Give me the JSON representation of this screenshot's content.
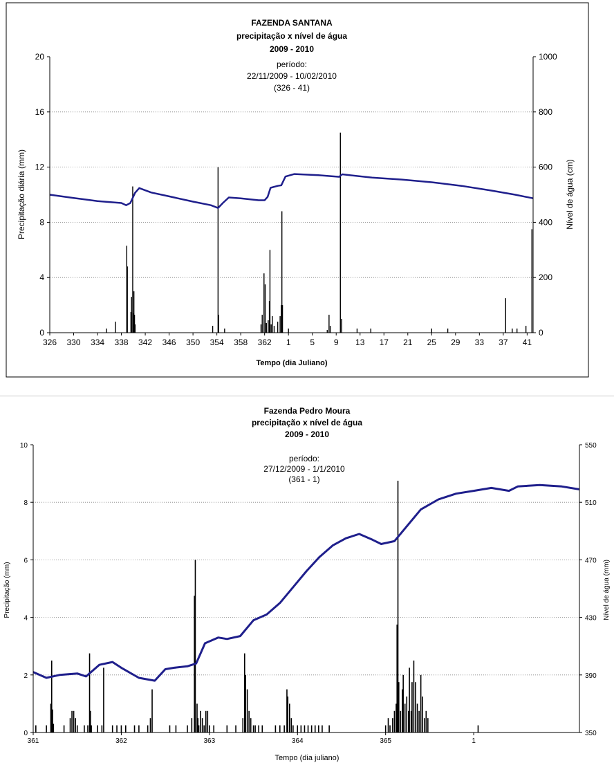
{
  "chart_data": [
    {
      "type": "bar+line",
      "title": [
        "FAZENDA SANTANA",
        "precipitação x nível de água",
        "2009 - 2010"
      ],
      "annotation": [
        "período:",
        "22/11/2009 - 10/02/2010",
        "(326 - 41)"
      ],
      "xlabel": "Tempo (dia Juliano)",
      "ylabel": "Precipitação diária (mm)",
      "y2label": "Nível de água (cm)",
      "ylim": [
        0,
        20
      ],
      "y2lim": [
        0,
        1000
      ],
      "yticks": [
        0,
        4,
        8,
        12,
        16,
        20
      ],
      "y2ticks": [
        0,
        200,
        400,
        600,
        800,
        1000
      ],
      "xticks": [
        "326",
        "330",
        "334",
        "338",
        "342",
        "346",
        "350",
        "354",
        "358",
        "362",
        "1",
        "5",
        "9",
        "13",
        "17",
        "21",
        "25",
        "29",
        "33",
        "37",
        "41"
      ],
      "xrange": [
        326,
        407
      ],
      "grid": "horizontal-dotted",
      "colors": {
        "line": "#1f1f8c",
        "bars": "#000000",
        "grid": "#808080"
      },
      "precipitation": [
        {
          "x": 335.5,
          "y": 0.3
        },
        {
          "x": 337,
          "y": 0.8
        },
        {
          "x": 338.9,
          "y": 6.3
        },
        {
          "x": 339,
          "y": 4.8
        },
        {
          "x": 339.6,
          "y": 1.5
        },
        {
          "x": 339.7,
          "y": 2.6
        },
        {
          "x": 339.9,
          "y": 10.6
        },
        {
          "x": 340,
          "y": 1.4
        },
        {
          "x": 340.1,
          "y": 3.0
        },
        {
          "x": 340.2,
          "y": 1.3
        },
        {
          "x": 340.3,
          "y": 0.6
        },
        {
          "x": 353.3,
          "y": 0.5
        },
        {
          "x": 354.2,
          "y": 12.0
        },
        {
          "x": 354.3,
          "y": 1.3
        },
        {
          "x": 355.3,
          "y": 0.3
        },
        {
          "x": 361.4,
          "y": 0.6
        },
        {
          "x": 361.6,
          "y": 1.3
        },
        {
          "x": 361.9,
          "y": 4.3
        },
        {
          "x": 362.1,
          "y": 3.5
        },
        {
          "x": 362.3,
          "y": 0.7
        },
        {
          "x": 362.6,
          "y": 0.9
        },
        {
          "x": 362.8,
          "y": 2.3
        },
        {
          "x": 362.9,
          "y": 6.0
        },
        {
          "x": 363.1,
          "y": 0.6
        },
        {
          "x": 363.3,
          "y": 1.2
        },
        {
          "x": 363.6,
          "y": 0.5
        },
        {
          "x": 364.2,
          "y": 0.8
        },
        {
          "x": 364.6,
          "y": 1.2
        },
        {
          "x": 364.8,
          "y": 2.0
        },
        {
          "x": 364.9,
          "y": 8.8
        },
        {
          "x": 365,
          "y": 2.0
        },
        {
          "x": 366,
          "y": 0.3
        },
        {
          "x": 372.5,
          "y": 0.2
        },
        {
          "x": 372.8,
          "y": 1.3
        },
        {
          "x": 373,
          "y": 0.5
        },
        {
          "x": 374.7,
          "y": 14.5
        },
        {
          "x": 374.9,
          "y": 1.0
        },
        {
          "x": 377.5,
          "y": 0.3
        },
        {
          "x": 379.8,
          "y": 0.3
        },
        {
          "x": 390,
          "y": 0.3
        },
        {
          "x": 392.7,
          "y": 0.3
        },
        {
          "x": 402.4,
          "y": 2.5
        },
        {
          "x": 403.5,
          "y": 0.3
        },
        {
          "x": 404.3,
          "y": 0.3
        },
        {
          "x": 405.8,
          "y": 0.5
        },
        {
          "x": 406.8,
          "y": 7.5
        }
      ],
      "water_level": [
        {
          "x": 326,
          "y": 500
        },
        {
          "x": 330,
          "y": 488
        },
        {
          "x": 334,
          "y": 477
        },
        {
          "x": 338,
          "y": 470
        },
        {
          "x": 338.8,
          "y": 462
        },
        {
          "x": 339.5,
          "y": 470
        },
        {
          "x": 340.3,
          "y": 507
        },
        {
          "x": 341,
          "y": 524
        },
        {
          "x": 343,
          "y": 508
        },
        {
          "x": 346,
          "y": 494
        },
        {
          "x": 350,
          "y": 475
        },
        {
          "x": 353,
          "y": 462
        },
        {
          "x": 354.2,
          "y": 452
        },
        {
          "x": 355,
          "y": 470
        },
        {
          "x": 356,
          "y": 490
        },
        {
          "x": 358,
          "y": 487
        },
        {
          "x": 361,
          "y": 480
        },
        {
          "x": 362,
          "y": 480
        },
        {
          "x": 362.5,
          "y": 492
        },
        {
          "x": 363,
          "y": 525
        },
        {
          "x": 364.2,
          "y": 532
        },
        {
          "x": 364.8,
          "y": 534
        },
        {
          "x": 365.5,
          "y": 566
        },
        {
          "x": 367,
          "y": 575
        },
        {
          "x": 371,
          "y": 571
        },
        {
          "x": 374.5,
          "y": 565
        },
        {
          "x": 375,
          "y": 574
        },
        {
          "x": 380,
          "y": 562
        },
        {
          "x": 385,
          "y": 555
        },
        {
          "x": 390,
          "y": 545
        },
        {
          "x": 395,
          "y": 532
        },
        {
          "x": 400,
          "y": 515
        },
        {
          "x": 404,
          "y": 500
        },
        {
          "x": 407,
          "y": 487
        }
      ]
    },
    {
      "type": "bar+line",
      "title": [
        "Fazenda Pedro Moura",
        "precipitação x nível de água",
        "2009 - 2010"
      ],
      "annotation": [
        "período:",
        "27/12/2009 - 1/1/2010",
        "(361 - 1)"
      ],
      "xlabel": "Tempo (dia juliano)",
      "ylabel": "Precipitação (mm)",
      "y2label": "Nível de água (mm)",
      "ylim": [
        0,
        10
      ],
      "y2lim": [
        350,
        550
      ],
      "yticks": [
        0,
        2,
        4,
        6,
        8,
        10
      ],
      "y2ticks": [
        350,
        390,
        430,
        470,
        510,
        550
      ],
      "xticks": [
        "361",
        "362",
        "363",
        "364",
        "365",
        "1"
      ],
      "xrange": [
        361,
        367.2
      ],
      "grid": "horizontal-dotted",
      "colors": {
        "line": "#1f1f8c",
        "bars": "#000000",
        "grid": "#808080"
      },
      "precipitation": [
        {
          "x": 361.03,
          "y": 0.25
        },
        {
          "x": 361.15,
          "y": 0.25
        },
        {
          "x": 361.2,
          "y": 1.0
        },
        {
          "x": 361.21,
          "y": 2.5
        },
        {
          "x": 361.22,
          "y": 0.8
        },
        {
          "x": 361.23,
          "y": 0.3
        },
        {
          "x": 361.35,
          "y": 0.25
        },
        {
          "x": 361.42,
          "y": 0.5
        },
        {
          "x": 361.44,
          "y": 0.75
        },
        {
          "x": 361.46,
          "y": 0.75
        },
        {
          "x": 361.48,
          "y": 0.5
        },
        {
          "x": 361.5,
          "y": 0.25
        },
        {
          "x": 361.58,
          "y": 0.25
        },
        {
          "x": 361.62,
          "y": 0.25
        },
        {
          "x": 361.64,
          "y": 2.75
        },
        {
          "x": 361.65,
          "y": 0.75
        },
        {
          "x": 361.66,
          "y": 0.25
        },
        {
          "x": 361.73,
          "y": 0.25
        },
        {
          "x": 361.78,
          "y": 0.25
        },
        {
          "x": 361.8,
          "y": 2.25
        },
        {
          "x": 361.9,
          "y": 0.25
        },
        {
          "x": 361.95,
          "y": 0.25
        },
        {
          "x": 362.0,
          "y": 0.25
        },
        {
          "x": 362.05,
          "y": 0.25
        },
        {
          "x": 362.15,
          "y": 0.25
        },
        {
          "x": 362.2,
          "y": 0.25
        },
        {
          "x": 362.3,
          "y": 0.25
        },
        {
          "x": 362.33,
          "y": 0.5
        },
        {
          "x": 362.35,
          "y": 1.5
        },
        {
          "x": 362.55,
          "y": 0.25
        },
        {
          "x": 362.62,
          "y": 0.25
        },
        {
          "x": 362.75,
          "y": 0.25
        },
        {
          "x": 362.8,
          "y": 0.5
        },
        {
          "x": 362.83,
          "y": 4.75
        },
        {
          "x": 362.84,
          "y": 6.0
        },
        {
          "x": 362.86,
          "y": 1.0
        },
        {
          "x": 362.87,
          "y": 0.5
        },
        {
          "x": 362.88,
          "y": 0.25
        },
        {
          "x": 362.9,
          "y": 0.75
        },
        {
          "x": 362.92,
          "y": 0.5
        },
        {
          "x": 362.94,
          "y": 0.25
        },
        {
          "x": 362.96,
          "y": 0.75
        },
        {
          "x": 362.98,
          "y": 0.75
        },
        {
          "x": 363.0,
          "y": 0.25
        },
        {
          "x": 363.05,
          "y": 0.25
        },
        {
          "x": 363.2,
          "y": 0.25
        },
        {
          "x": 363.3,
          "y": 0.25
        },
        {
          "x": 363.38,
          "y": 0.5
        },
        {
          "x": 363.4,
          "y": 2.75
        },
        {
          "x": 363.41,
          "y": 2.0
        },
        {
          "x": 363.43,
          "y": 1.5
        },
        {
          "x": 363.45,
          "y": 0.75
        },
        {
          "x": 363.47,
          "y": 0.5
        },
        {
          "x": 363.5,
          "y": 0.25
        },
        {
          "x": 363.52,
          "y": 0.25
        },
        {
          "x": 363.56,
          "y": 0.25
        },
        {
          "x": 363.6,
          "y": 0.25
        },
        {
          "x": 363.75,
          "y": 0.25
        },
        {
          "x": 363.8,
          "y": 0.25
        },
        {
          "x": 363.85,
          "y": 0.25
        },
        {
          "x": 363.88,
          "y": 1.5
        },
        {
          "x": 363.89,
          "y": 1.25
        },
        {
          "x": 363.91,
          "y": 1.0
        },
        {
          "x": 363.93,
          "y": 0.5
        },
        {
          "x": 363.95,
          "y": 0.25
        },
        {
          "x": 364.0,
          "y": 0.25
        },
        {
          "x": 364.04,
          "y": 0.25
        },
        {
          "x": 364.08,
          "y": 0.25
        },
        {
          "x": 364.12,
          "y": 0.25
        },
        {
          "x": 364.16,
          "y": 0.25
        },
        {
          "x": 364.2,
          "y": 0.25
        },
        {
          "x": 364.24,
          "y": 0.25
        },
        {
          "x": 364.28,
          "y": 0.25
        },
        {
          "x": 364.36,
          "y": 0.25
        },
        {
          "x": 365.0,
          "y": 0.25
        },
        {
          "x": 365.03,
          "y": 0.5
        },
        {
          "x": 365.05,
          "y": 0.25
        },
        {
          "x": 365.08,
          "y": 0.5
        },
        {
          "x": 365.1,
          "y": 0.75
        },
        {
          "x": 365.12,
          "y": 1.0
        },
        {
          "x": 365.13,
          "y": 3.75
        },
        {
          "x": 365.14,
          "y": 8.75
        },
        {
          "x": 365.15,
          "y": 1.75
        },
        {
          "x": 365.17,
          "y": 0.75
        },
        {
          "x": 365.19,
          "y": 1.5
        },
        {
          "x": 365.2,
          "y": 2.0
        },
        {
          "x": 365.22,
          "y": 1.0
        },
        {
          "x": 365.24,
          "y": 1.25
        },
        {
          "x": 365.26,
          "y": 0.75
        },
        {
          "x": 365.27,
          "y": 2.25
        },
        {
          "x": 365.29,
          "y": 0.75
        },
        {
          "x": 365.3,
          "y": 1.75
        },
        {
          "x": 365.32,
          "y": 2.5
        },
        {
          "x": 365.34,
          "y": 1.75
        },
        {
          "x": 365.36,
          "y": 1.0
        },
        {
          "x": 365.38,
          "y": 0.75
        },
        {
          "x": 365.4,
          "y": 2.0
        },
        {
          "x": 365.42,
          "y": 1.25
        },
        {
          "x": 365.44,
          "y": 0.5
        },
        {
          "x": 365.46,
          "y": 0.75
        },
        {
          "x": 365.48,
          "y": 0.5
        },
        {
          "x": 366.05,
          "y": 0.25
        }
      ],
      "water_level": [
        {
          "x": 361.0,
          "y": 392
        },
        {
          "x": 361.15,
          "y": 388
        },
        {
          "x": 361.3,
          "y": 390
        },
        {
          "x": 361.5,
          "y": 391
        },
        {
          "x": 361.6,
          "y": 389
        },
        {
          "x": 361.75,
          "y": 397
        },
        {
          "x": 361.9,
          "y": 399
        },
        {
          "x": 362.0,
          "y": 395
        },
        {
          "x": 362.2,
          "y": 388
        },
        {
          "x": 362.38,
          "y": 386
        },
        {
          "x": 362.5,
          "y": 394
        },
        {
          "x": 362.6,
          "y": 395
        },
        {
          "x": 362.75,
          "y": 396
        },
        {
          "x": 362.85,
          "y": 398
        },
        {
          "x": 362.95,
          "y": 412
        },
        {
          "x": 363.1,
          "y": 416
        },
        {
          "x": 363.2,
          "y": 415
        },
        {
          "x": 363.35,
          "y": 417
        },
        {
          "x": 363.5,
          "y": 428
        },
        {
          "x": 363.65,
          "y": 432
        },
        {
          "x": 363.8,
          "y": 440
        },
        {
          "x": 363.95,
          "y": 451
        },
        {
          "x": 364.1,
          "y": 462
        },
        {
          "x": 364.25,
          "y": 472
        },
        {
          "x": 364.4,
          "y": 480
        },
        {
          "x": 364.55,
          "y": 485
        },
        {
          "x": 364.7,
          "y": 488
        },
        {
          "x": 364.85,
          "y": 484
        },
        {
          "x": 364.95,
          "y": 481
        },
        {
          "x": 365.1,
          "y": 483
        },
        {
          "x": 365.25,
          "y": 494
        },
        {
          "x": 365.4,
          "y": 505
        },
        {
          "x": 365.6,
          "y": 512
        },
        {
          "x": 365.8,
          "y": 516
        },
        {
          "x": 366.0,
          "y": 518
        },
        {
          "x": 366.2,
          "y": 520
        },
        {
          "x": 366.4,
          "y": 518
        },
        {
          "x": 366.5,
          "y": 521
        },
        {
          "x": 366.75,
          "y": 522
        },
        {
          "x": 367.0,
          "y": 521
        },
        {
          "x": 367.2,
          "y": 519
        }
      ]
    }
  ]
}
